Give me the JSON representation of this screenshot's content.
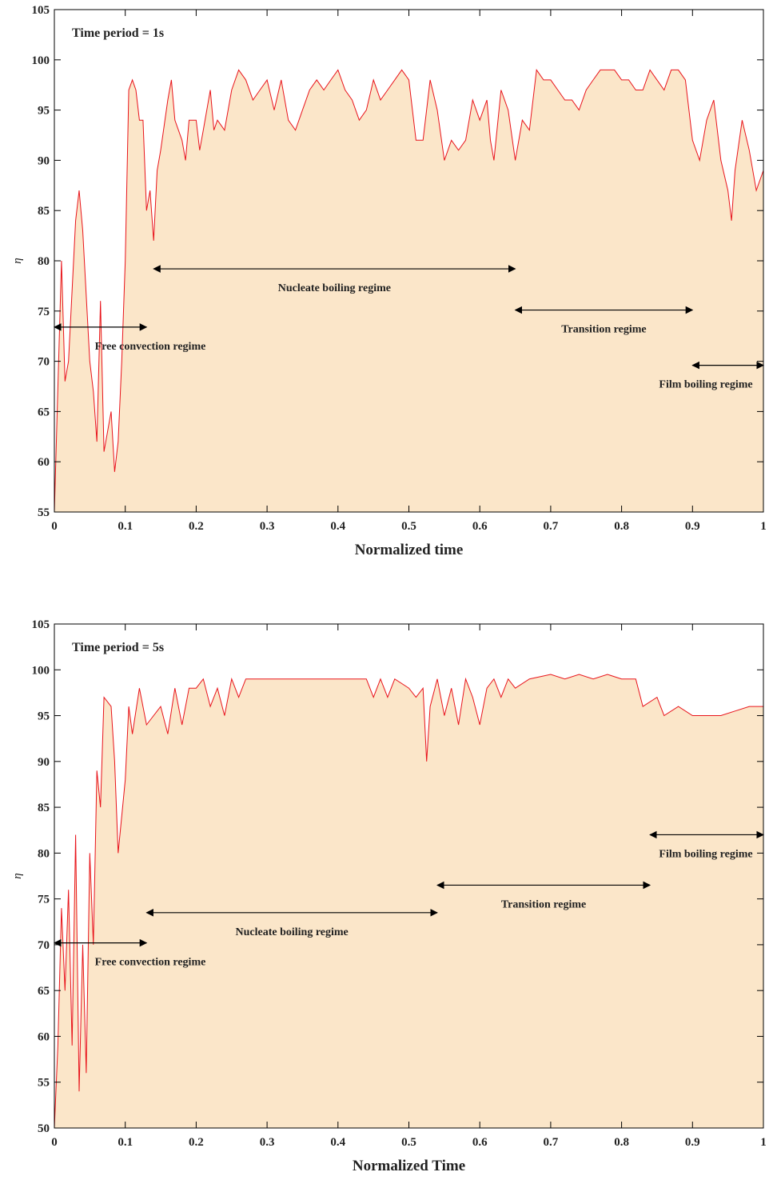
{
  "chart_data": [
    {
      "type": "area",
      "label": "Time period = 1s",
      "xlabel": "Normalized time",
      "ylabel": "η",
      "color": "#e8141b",
      "fill": "#fbe6c9",
      "xlim": [
        0,
        1
      ],
      "ylim": [
        55,
        105
      ],
      "xticks": [
        0,
        0.1,
        0.2,
        0.3,
        0.4,
        0.5,
        0.6,
        0.7,
        0.8,
        0.9,
        1
      ],
      "yticks": [
        55,
        60,
        65,
        70,
        75,
        80,
        85,
        90,
        95,
        100,
        105
      ],
      "x": [
        0,
        0.01,
        0.015,
        0.02,
        0.03,
        0.035,
        0.04,
        0.05,
        0.055,
        0.06,
        0.065,
        0.07,
        0.08,
        0.085,
        0.09,
        0.095,
        0.1,
        0.105,
        0.11,
        0.115,
        0.12,
        0.125,
        0.13,
        0.135,
        0.14,
        0.145,
        0.15,
        0.16,
        0.165,
        0.17,
        0.18,
        0.185,
        0.19,
        0.2,
        0.205,
        0.21,
        0.22,
        0.225,
        0.23,
        0.24,
        0.25,
        0.26,
        0.27,
        0.28,
        0.29,
        0.3,
        0.31,
        0.32,
        0.33,
        0.34,
        0.35,
        0.36,
        0.37,
        0.38,
        0.39,
        0.4,
        0.41,
        0.42,
        0.43,
        0.44,
        0.45,
        0.46,
        0.47,
        0.48,
        0.49,
        0.5,
        0.51,
        0.52,
        0.53,
        0.54,
        0.55,
        0.56,
        0.57,
        0.58,
        0.59,
        0.6,
        0.61,
        0.615,
        0.62,
        0.63,
        0.64,
        0.65,
        0.66,
        0.67,
        0.68,
        0.69,
        0.7,
        0.71,
        0.72,
        0.73,
        0.74,
        0.75,
        0.76,
        0.77,
        0.78,
        0.79,
        0.8,
        0.81,
        0.82,
        0.83,
        0.84,
        0.85,
        0.86,
        0.87,
        0.88,
        0.89,
        0.9,
        0.91,
        0.92,
        0.93,
        0.94,
        0.95,
        0.955,
        0.96,
        0.97,
        0.98,
        0.99,
        1
      ],
      "values": [
        55,
        80,
        68,
        70,
        84,
        87,
        83,
        70,
        67,
        62,
        76,
        61,
        65,
        59,
        62,
        70,
        80,
        97,
        98,
        97,
        94,
        94,
        85,
        87,
        82,
        89,
        91,
        96,
        98,
        94,
        92,
        90,
        94,
        94,
        91,
        93,
        97,
        93,
        94,
        93,
        97,
        99,
        98,
        96,
        97,
        98,
        95,
        98,
        94,
        93,
        95,
        97,
        98,
        97,
        98,
        99,
        97,
        96,
        94,
        95,
        98,
        96,
        97,
        98,
        99,
        98,
        92,
        92,
        98,
        95,
        90,
        92,
        91,
        92,
        96,
        94,
        96,
        92,
        90,
        97,
        95,
        90,
        94,
        93,
        99,
        98,
        98,
        97,
        96,
        96,
        95,
        97,
        98,
        99,
        99,
        99,
        98,
        98,
        97,
        97,
        99,
        98,
        97,
        99,
        99,
        98,
        92,
        90,
        94,
        96,
        90,
        87,
        84,
        89,
        94,
        91,
        87,
        89
      ],
      "annotations": [
        {
          "text": "Free convection regime",
          "x": [
            0,
            0.13
          ],
          "y": 73.4
        },
        {
          "text": "Nucleate boiling regime",
          "x": [
            0.14,
            0.65
          ],
          "y": 79.2
        },
        {
          "text": "Transition regime",
          "x": [
            0.65,
            0.9
          ],
          "y": 75.1
        },
        {
          "text": "Film boiling regime",
          "x": [
            0.9,
            1
          ],
          "y": 69.6
        }
      ]
    },
    {
      "type": "area",
      "label": "Time period = 5s",
      "xlabel": "Normalized Time",
      "ylabel": "η",
      "color": "#e8141b",
      "fill": "#fbe6c9",
      "xlim": [
        0,
        1
      ],
      "ylim": [
        50,
        105
      ],
      "xticks": [
        0,
        0.1,
        0.2,
        0.3,
        0.4,
        0.5,
        0.6,
        0.7,
        0.8,
        0.9,
        1
      ],
      "yticks": [
        50,
        55,
        60,
        65,
        70,
        75,
        80,
        85,
        90,
        95,
        100,
        105
      ],
      "x": [
        0,
        0.005,
        0.01,
        0.015,
        0.02,
        0.025,
        0.03,
        0.035,
        0.04,
        0.045,
        0.05,
        0.055,
        0.06,
        0.065,
        0.07,
        0.08,
        0.085,
        0.09,
        0.1,
        0.105,
        0.11,
        0.12,
        0.13,
        0.14,
        0.15,
        0.16,
        0.17,
        0.18,
        0.19,
        0.2,
        0.21,
        0.22,
        0.23,
        0.24,
        0.25,
        0.26,
        0.27,
        0.28,
        0.3,
        0.32,
        0.34,
        0.36,
        0.38,
        0.4,
        0.42,
        0.44,
        0.45,
        0.46,
        0.47,
        0.48,
        0.5,
        0.51,
        0.52,
        0.525,
        0.53,
        0.54,
        0.55,
        0.56,
        0.57,
        0.58,
        0.59,
        0.6,
        0.61,
        0.62,
        0.63,
        0.64,
        0.65,
        0.67,
        0.7,
        0.72,
        0.74,
        0.76,
        0.78,
        0.8,
        0.82,
        0.83,
        0.85,
        0.86,
        0.88,
        0.9,
        0.92,
        0.94,
        0.96,
        0.98,
        1
      ],
      "values": [
        50,
        59,
        74,
        65,
        76,
        59,
        82,
        54,
        70,
        56,
        80,
        70,
        89,
        85,
        97,
        96,
        90,
        80,
        88,
        96,
        93,
        98,
        94,
        95,
        96,
        93,
        98,
        94,
        98,
        98,
        99,
        96,
        98,
        95,
        99,
        97,
        99,
        99,
        99,
        99,
        99,
        99,
        99,
        99,
        99,
        99,
        97,
        99,
        97,
        99,
        98,
        97,
        98,
        90,
        96,
        99,
        95,
        98,
        94,
        99,
        97,
        94,
        98,
        99,
        97,
        99,
        98,
        99,
        99.5,
        99,
        99.5,
        99,
        99.5,
        99,
        99,
        96,
        97,
        95,
        96,
        95,
        95,
        95,
        95.5,
        96,
        96
      ],
      "annotations": [
        {
          "text": "Free convection regime",
          "x": [
            0,
            0.13
          ],
          "y": 70.2
        },
        {
          "text": "Nucleate boiling regime",
          "x": [
            0.13,
            0.54
          ],
          "y": 73.5
        },
        {
          "text": "Transition regime",
          "x": [
            0.54,
            0.84
          ],
          "y": 76.5
        },
        {
          "text": "Film boiling regime",
          "x": [
            0.84,
            1
          ],
          "y": 82
        }
      ]
    }
  ]
}
